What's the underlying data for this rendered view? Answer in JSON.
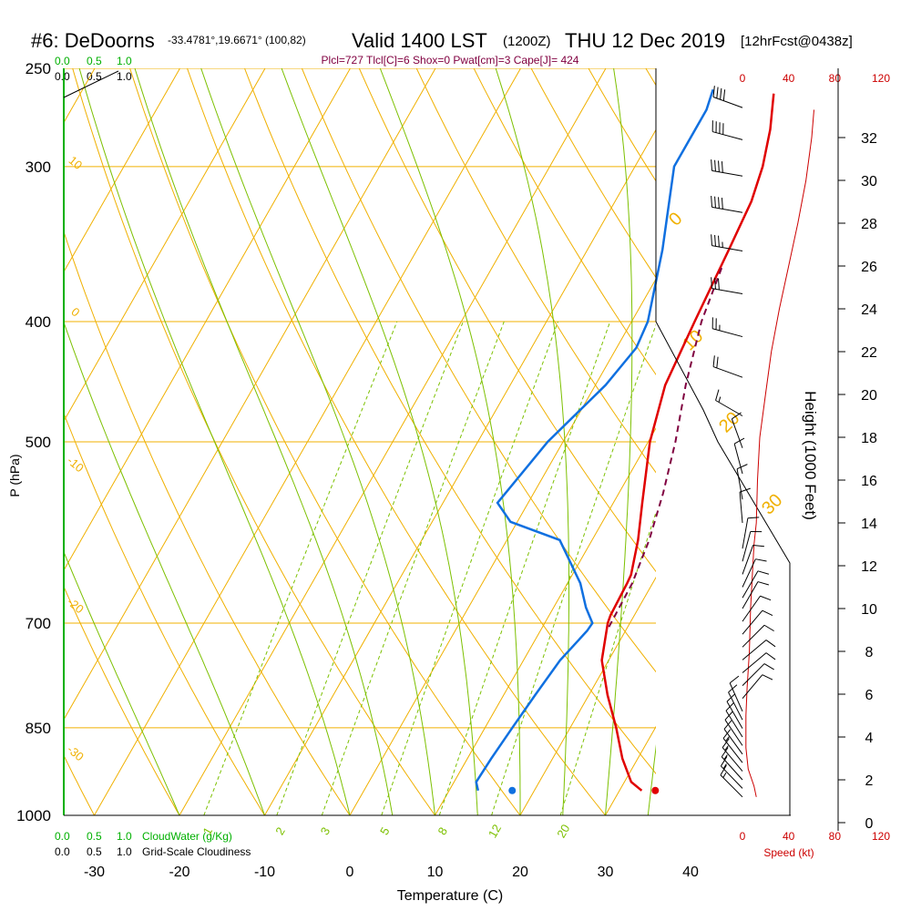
{
  "header": {
    "station": "#6: DeDoorns",
    "coords": "-33.4781°,19.6671° (100,82)",
    "valid": "Valid 1400 LST",
    "utc": "(1200Z)",
    "date": "THU 12 Dec 2019",
    "forecast": "[12hrFcst@0438z]",
    "indices": "Plcl=727 Tlcl[C]=6 Shox=0 Pwat[cm]=3 Cape[J]= 424"
  },
  "legend": {
    "cloudwater_scale": [
      "0.0",
      "0.5",
      "1.0"
    ],
    "cloudiness_scale": [
      "0.0",
      "0.5",
      "1.0"
    ],
    "cloudwater_label": "CloudWater (g/Kg)",
    "cloudiness_label": "Grid-Scale Cloudiness"
  },
  "colors": {
    "isotherm": "#f0b000",
    "mixing_ratio": "#7cc000",
    "temperature": "#e00000",
    "dewpoint": "#1070e0",
    "parcel": "#800040",
    "indices": "#800040",
    "wind_speed": "#cc0000",
    "cloud": "#00b000"
  },
  "chart_data": [
    {
      "type": "line",
      "title": "",
      "xlabel": "Temperature (C)",
      "ylabel": "P (hPa)",
      "x_ticks": [
        "-30",
        "-20",
        "-10",
        "0",
        "10",
        "20",
        "30",
        "40"
      ],
      "y_ticks": [
        "250",
        "300",
        "400",
        "500",
        "700",
        "850",
        "1000"
      ],
      "xlim": [
        -35,
        45
      ],
      "ylim": [
        1000,
        250
      ],
      "y_scale": "log",
      "isotherm_labels": [
        "30",
        "20",
        "10",
        "0",
        "-10",
        "-20",
        "-30"
      ],
      "adiabat_labels": [
        "0",
        "10",
        "20",
        "30"
      ],
      "mixing_ratio_labels": [
        "1",
        "2",
        "3",
        "5",
        "8",
        "12",
        "20"
      ],
      "series": [
        {
          "key": "temperature",
          "pressure": [
            955,
            940,
            900,
            850,
            800,
            750,
            700,
            690,
            650,
            640,
            600,
            560,
            500,
            450,
            400,
            350,
            320,
            300,
            280,
            262
          ],
          "values": [
            32.6,
            30.8,
            28.2,
            25.4,
            22.2,
            19.2,
            17.4,
            17.2,
            17.0,
            16.9,
            15.4,
            13.4,
            10.2,
            8.2,
            7.4,
            6.6,
            6.0,
            5.0,
            3.4,
            1.4
          ]
        },
        {
          "key": "dewpoint",
          "pressure": [
            955,
            940,
            900,
            850,
            800,
            750,
            710,
            700,
            680,
            650,
            600,
            580,
            560,
            500,
            450,
            420,
            400,
            350,
            300,
            270,
            260
          ],
          "values": [
            13.4,
            12.6,
            12.8,
            13.2,
            13.7,
            14.3,
            15.5,
            15.6,
            13.8,
            11.5,
            6.2,
            -0.8,
            -3.6,
            -1.8,
            1.2,
            2.3,
            1.9,
            -1.2,
            -5.4,
            -5.4,
            -6.0
          ]
        },
        {
          "key": "parcel",
          "pressure": [
            705,
            650,
            600,
            550,
            500,
            450,
            400,
            360
          ],
          "values": [
            17.8,
            17.6,
            16.7,
            15.2,
            13.2,
            10.6,
            8.2,
            6.9
          ]
        }
      ],
      "surface_points": [
        {
          "key": "temperature",
          "pressure": 955,
          "value": 34.2
        },
        {
          "key": "dewpoint",
          "pressure": 955,
          "value": 17.4
        }
      ]
    },
    {
      "type": "line",
      "title": "",
      "xlabel": "Speed (kt)",
      "ylabel": "Height (1000 Feet)",
      "x_ticks_top": [
        "0",
        "40",
        "80",
        "120"
      ],
      "x_ticks_bottom": [
        "0",
        "40",
        "80",
        "120"
      ],
      "y_ticks": [
        "0",
        "2",
        "4",
        "6",
        "8",
        "10",
        "12",
        "14",
        "16",
        "18",
        "20",
        "22",
        "24",
        "26",
        "28",
        "30",
        "32"
      ],
      "xlim": [
        0,
        120
      ],
      "series": [
        {
          "key": "wind_speed",
          "height_kft": [
            1.2,
            1.7,
            2.5,
            3.5,
            5.0,
            6.3,
            8.0,
            10.0,
            12.0,
            13.0,
            14.0,
            16.0,
            18.0,
            20.0,
            22.0,
            24.0,
            26.0,
            28.0,
            30.0,
            32.0,
            33.3
          ],
          "values": [
            12,
            10,
            5,
            3,
            3,
            4,
            6,
            7,
            9,
            10,
            12,
            13,
            15,
            20,
            25,
            32,
            40,
            48,
            55,
            60,
            62
          ]
        }
      ],
      "barbs": [
        {
          "height_kft": 1.2,
          "dir": 315,
          "kt": 18
        },
        {
          "height_kft": 1.6,
          "dir": 316,
          "kt": 17
        },
        {
          "height_kft": 2.0,
          "dir": 318,
          "kt": 16
        },
        {
          "height_kft": 2.4,
          "dir": 320,
          "kt": 15
        },
        {
          "height_kft": 2.8,
          "dir": 322,
          "kt": 15
        },
        {
          "height_kft": 3.2,
          "dir": 324,
          "kt": 14
        },
        {
          "height_kft": 3.6,
          "dir": 326,
          "kt": 13
        },
        {
          "height_kft": 4.0,
          "dir": 328,
          "kt": 12
        },
        {
          "height_kft": 4.4,
          "dir": 330,
          "kt": 12
        },
        {
          "height_kft": 4.8,
          "dir": 333,
          "kt": 11
        },
        {
          "height_kft": 5.2,
          "dir": 336,
          "kt": 11
        },
        {
          "height_kft": 5.8,
          "dir": 40,
          "kt": 12
        },
        {
          "height_kft": 6.4,
          "dir": 45,
          "kt": 12
        },
        {
          "height_kft": 7.0,
          "dir": 50,
          "kt": 12
        },
        {
          "height_kft": 7.6,
          "dir": 50,
          "kt": 12
        },
        {
          "height_kft": 8.2,
          "dir": 45,
          "kt": 12
        },
        {
          "height_kft": 8.8,
          "dir": 40,
          "kt": 12
        },
        {
          "height_kft": 9.4,
          "dir": 35,
          "kt": 12
        },
        {
          "height_kft": 10.0,
          "dir": 30,
          "kt": 12
        },
        {
          "height_kft": 10.5,
          "dir": 30,
          "kt": 12
        },
        {
          "height_kft": 11.0,
          "dir": 25,
          "kt": 12
        },
        {
          "height_kft": 11.6,
          "dir": 20,
          "kt": 12
        },
        {
          "height_kft": 12.2,
          "dir": 15,
          "kt": 12
        },
        {
          "height_kft": 12.8,
          "dir": 10,
          "kt": 10
        },
        {
          "height_kft": 14.0,
          "dir": 355,
          "kt": 10
        },
        {
          "height_kft": 15.1,
          "dir": 350,
          "kt": 10
        },
        {
          "height_kft": 16.3,
          "dir": 345,
          "kt": 10
        },
        {
          "height_kft": 17.5,
          "dir": 340,
          "kt": 10
        },
        {
          "height_kft": 19.0,
          "dir": 300,
          "kt": 15
        },
        {
          "height_kft": 20.8,
          "dir": 290,
          "kt": 20
        },
        {
          "height_kft": 22.7,
          "dir": 285,
          "kt": 25
        },
        {
          "height_kft": 24.7,
          "dir": 280,
          "kt": 30
        },
        {
          "height_kft": 26.7,
          "dir": 280,
          "kt": 35
        },
        {
          "height_kft": 28.5,
          "dir": 280,
          "kt": 40
        },
        {
          "height_kft": 30.2,
          "dir": 280,
          "kt": 40
        },
        {
          "height_kft": 31.9,
          "dir": 285,
          "kt": 40
        },
        {
          "height_kft": 33.4,
          "dir": 290,
          "kt": 40
        }
      ]
    }
  ]
}
